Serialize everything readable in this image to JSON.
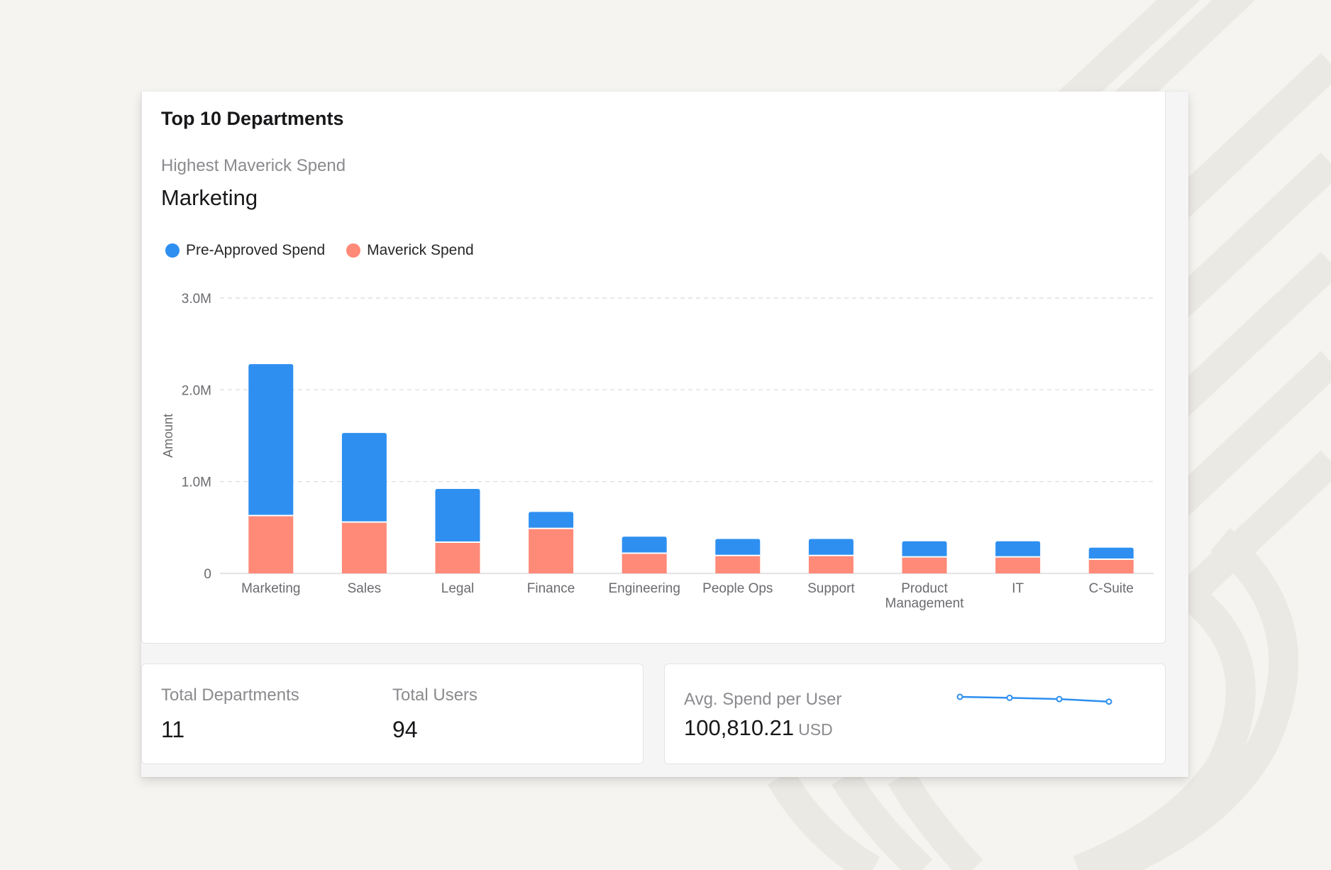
{
  "colors": {
    "pre_approved": "#2e8ff0",
    "maverick": "#ff8a78",
    "background": "#f5f4f1",
    "card": "#ffffff"
  },
  "chart_card": {
    "title": "Top 10 Departments",
    "subtitle": "Highest Maverick Spend",
    "highlight": "Marketing"
  },
  "chart_data": {
    "type": "bar",
    "stacked": true,
    "title": "Top 10 Departments",
    "xlabel": "",
    "ylabel": "Amount",
    "ylim": [
      0,
      3000000
    ],
    "yticks": [
      0,
      1000000,
      2000000,
      3000000
    ],
    "ytick_labels": [
      "0",
      "1.0M",
      "2.0M",
      "3.0M"
    ],
    "grid": true,
    "legend_position": "top-left",
    "categories": [
      "Marketing",
      "Sales",
      "Legal",
      "Finance",
      "Engineering",
      "People Ops",
      "Support",
      "Product Management",
      "IT",
      "C-Suite"
    ],
    "category_lines": [
      [
        "Marketing"
      ],
      [
        "Sales"
      ],
      [
        "Legal"
      ],
      [
        "Finance"
      ],
      [
        "Engineering"
      ],
      [
        "People Ops"
      ],
      [
        "Support"
      ],
      [
        "Product",
        "Management"
      ],
      [
        "IT"
      ],
      [
        "C-Suite"
      ]
    ],
    "series": [
      {
        "name": "Maverick Spend",
        "color": "#ff8a78",
        "values": [
          630000,
          560000,
          340000,
          490000,
          220000,
          195000,
          195000,
          180000,
          180000,
          155000
        ]
      },
      {
        "name": "Pre-Approved Spend",
        "color": "#2e8ff0",
        "values": [
          1650000,
          970000,
          580000,
          180000,
          180000,
          180000,
          180000,
          170000,
          170000,
          125000
        ]
      }
    ],
    "legend": [
      {
        "name": "Pre-Approved Spend",
        "color": "#2e8ff0"
      },
      {
        "name": "Maverick Spend",
        "color": "#ff8a78"
      }
    ]
  },
  "stats": {
    "total_departments_label": "Total Departments",
    "total_departments_value": "11",
    "total_users_label": "Total Users",
    "total_users_value": "94"
  },
  "avg_spend": {
    "label": "Avg. Spend per User",
    "value": "100,810.21",
    "unit": "USD",
    "sparkline": [
      1.0,
      0.97,
      0.93,
      0.85
    ]
  }
}
